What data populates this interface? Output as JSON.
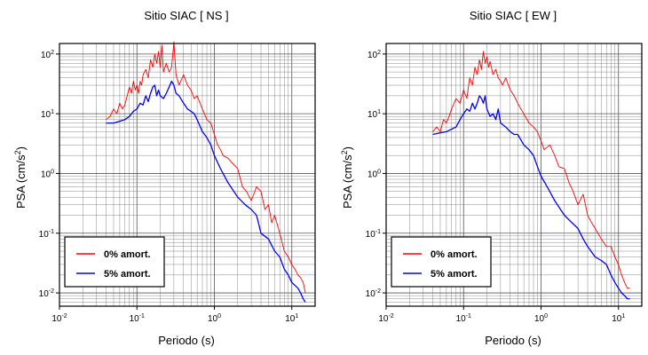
{
  "chart_data": [
    {
      "type": "line",
      "title": "Sitio SIAC [ NS ]",
      "xlabel": "Periodo (s)",
      "ylabel_main": "PSA (cm/s",
      "ylabel_sup": "2",
      "ylabel_tail": ")",
      "x_scale": "log",
      "y_scale": "log",
      "xlim": [
        0.01,
        20
      ],
      "ylim": [
        0.006,
        150
      ],
      "grid": true,
      "legend_position": "bottom-left",
      "x_ticks": [
        {
          "base": "10",
          "exp": "-2",
          "value": 0.01
        },
        {
          "base": "10",
          "exp": "-1",
          "value": 0.1
        },
        {
          "base": "10",
          "exp": "0",
          "value": 1
        },
        {
          "base": "10",
          "exp": "1",
          "value": 10
        }
      ],
      "y_ticks": [
        {
          "base": "10",
          "exp": "-2",
          "value": 0.01
        },
        {
          "base": "10",
          "exp": "-1",
          "value": 0.1
        },
        {
          "base": "10",
          "exp": "0",
          "value": 1
        },
        {
          "base": "10",
          "exp": "1",
          "value": 10
        },
        {
          "base": "10",
          "exp": "2",
          "value": 100
        }
      ],
      "series": [
        {
          "name": "0% amort.",
          "color": "#ff0000",
          "x": [
            0.04,
            0.045,
            0.05,
            0.055,
            0.06,
            0.065,
            0.07,
            0.075,
            0.08,
            0.085,
            0.09,
            0.095,
            0.1,
            0.105,
            0.11,
            0.115,
            0.12,
            0.13,
            0.14,
            0.15,
            0.16,
            0.17,
            0.18,
            0.19,
            0.2,
            0.21,
            0.22,
            0.24,
            0.26,
            0.28,
            0.3,
            0.32,
            0.35,
            0.4,
            0.45,
            0.5,
            0.55,
            0.6,
            0.7,
            0.8,
            0.9,
            1.0,
            1.1,
            1.2,
            1.3,
            1.5,
            1.7,
            2.0,
            2.3,
            2.6,
            3.0,
            3.5,
            4.0,
            4.5,
            5.0,
            5.5,
            6.0,
            7.0,
            8.0,
            9.0,
            10.0,
            11.0,
            12.0,
            13.0,
            14.0,
            15.0
          ],
          "y": [
            8,
            9,
            12,
            10,
            15,
            12,
            14,
            20,
            28,
            22,
            35,
            25,
            30,
            22,
            35,
            30,
            45,
            55,
            40,
            80,
            60,
            100,
            70,
            110,
            60,
            140,
            50,
            70,
            50,
            60,
            160,
            45,
            30,
            45,
            30,
            25,
            18,
            20,
            12,
            8,
            7,
            4.5,
            3,
            2.5,
            2,
            1.8,
            1.5,
            1.2,
            0.6,
            0.5,
            0.35,
            0.6,
            0.5,
            0.25,
            0.3,
            0.15,
            0.2,
            0.1,
            0.05,
            0.04,
            0.03,
            0.025,
            0.02,
            0.018,
            0.015,
            0.01
          ]
        },
        {
          "name": "5% amort.",
          "color": "#0000ff",
          "x": [
            0.04,
            0.05,
            0.06,
            0.07,
            0.08,
            0.09,
            0.1,
            0.11,
            0.12,
            0.13,
            0.14,
            0.15,
            0.16,
            0.17,
            0.18,
            0.19,
            0.2,
            0.22,
            0.24,
            0.26,
            0.28,
            0.3,
            0.32,
            0.35,
            0.4,
            0.45,
            0.5,
            0.55,
            0.6,
            0.7,
            0.8,
            0.9,
            1.0,
            1.2,
            1.5,
            2.0,
            2.5,
            3.0,
            3.5,
            4.0,
            5.0,
            6.0,
            7.0,
            8.0,
            9.0,
            10.0,
            12.0,
            13.0,
            14.0,
            15.0
          ],
          "y": [
            7,
            7,
            7.5,
            8,
            9,
            11,
            12,
            15,
            14,
            20,
            16,
            22,
            28,
            30,
            20,
            25,
            20,
            18,
            22,
            28,
            35,
            30,
            22,
            20,
            15,
            12,
            11,
            10,
            8,
            5,
            4,
            3,
            2,
            1.2,
            0.7,
            0.4,
            0.3,
            0.25,
            0.2,
            0.1,
            0.08,
            0.05,
            0.04,
            0.025,
            0.02,
            0.015,
            0.012,
            0.01,
            0.008,
            0.007
          ]
        }
      ]
    },
    {
      "type": "line",
      "title": "Sitio SIAC [ EW ]",
      "xlabel": "Periodo (s)",
      "ylabel_main": "PSA (cm/s",
      "ylabel_sup": "2",
      "ylabel_tail": ")",
      "x_scale": "log",
      "y_scale": "log",
      "xlim": [
        0.01,
        20
      ],
      "ylim": [
        0.006,
        150
      ],
      "grid": true,
      "legend_position": "bottom-left",
      "x_ticks": [
        {
          "base": "10",
          "exp": "-2",
          "value": 0.01
        },
        {
          "base": "10",
          "exp": "-1",
          "value": 0.1
        },
        {
          "base": "10",
          "exp": "0",
          "value": 1
        },
        {
          "base": "10",
          "exp": "1",
          "value": 10
        }
      ],
      "y_ticks": [
        {
          "base": "10",
          "exp": "-2",
          "value": 0.01
        },
        {
          "base": "10",
          "exp": "-1",
          "value": 0.1
        },
        {
          "base": "10",
          "exp": "0",
          "value": 1
        },
        {
          "base": "10",
          "exp": "1",
          "value": 10
        },
        {
          "base": "10",
          "exp": "2",
          "value": 100
        }
      ],
      "series": [
        {
          "name": "0% amort.",
          "color": "#ff0000",
          "x": [
            0.04,
            0.045,
            0.05,
            0.055,
            0.06,
            0.065,
            0.07,
            0.08,
            0.09,
            0.1,
            0.11,
            0.12,
            0.13,
            0.14,
            0.15,
            0.16,
            0.17,
            0.18,
            0.19,
            0.2,
            0.21,
            0.22,
            0.24,
            0.26,
            0.28,
            0.3,
            0.32,
            0.35,
            0.4,
            0.45,
            0.5,
            0.55,
            0.6,
            0.7,
            0.8,
            0.9,
            1.0,
            1.1,
            1.3,
            1.5,
            1.7,
            2.0,
            2.3,
            2.6,
            3.0,
            3.5,
            4.0,
            4.5,
            5.0,
            6.0,
            7.0,
            8.0,
            9.0,
            10.0,
            11.0,
            12.0,
            13.0,
            14.0
          ],
          "y": [
            5,
            6,
            5,
            8,
            7,
            9,
            12,
            18,
            15,
            25,
            18,
            40,
            30,
            60,
            45,
            80,
            55,
            110,
            70,
            90,
            60,
            75,
            45,
            55,
            40,
            35,
            30,
            40,
            25,
            20,
            15,
            12,
            10,
            7,
            6,
            5,
            3.5,
            2.5,
            3,
            2,
            1.3,
            1.2,
            0.7,
            0.5,
            0.3,
            0.45,
            0.2,
            0.15,
            0.12,
            0.08,
            0.06,
            0.06,
            0.04,
            0.03,
            0.02,
            0.015,
            0.012,
            0.012
          ]
        },
        {
          "name": "5% amort.",
          "color": "#0000ff",
          "x": [
            0.04,
            0.05,
            0.06,
            0.07,
            0.08,
            0.09,
            0.1,
            0.11,
            0.12,
            0.13,
            0.14,
            0.15,
            0.16,
            0.17,
            0.18,
            0.19,
            0.2,
            0.22,
            0.24,
            0.26,
            0.28,
            0.3,
            0.35,
            0.4,
            0.45,
            0.5,
            0.6,
            0.7,
            0.8,
            0.9,
            1.0,
            1.2,
            1.5,
            2.0,
            2.5,
            3.0,
            3.5,
            4.0,
            5.0,
            6.0,
            7.0,
            8.0,
            9.0,
            10.0,
            11.0,
            12.0,
            13.0,
            14.0
          ],
          "y": [
            4.5,
            4.8,
            5,
            5.5,
            6,
            8,
            10,
            12,
            11,
            15,
            12,
            15,
            20,
            18,
            15,
            20,
            12,
            9,
            10,
            8,
            12,
            7,
            6,
            5,
            4.5,
            4.5,
            3,
            2.5,
            2,
            1.3,
            0.9,
            0.6,
            0.35,
            0.2,
            0.15,
            0.12,
            0.08,
            0.06,
            0.04,
            0.035,
            0.03,
            0.02,
            0.015,
            0.012,
            0.01,
            0.009,
            0.008,
            0.008
          ]
        }
      ]
    }
  ]
}
